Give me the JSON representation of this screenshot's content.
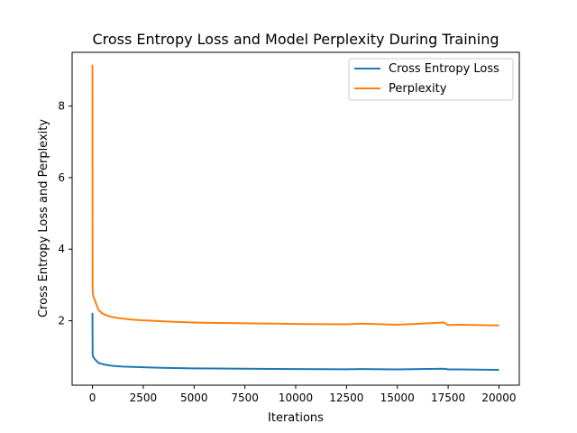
{
  "chart_data": {
    "type": "line",
    "title": "Cross Entropy Loss and Model Perplexity During Training",
    "xlabel": "Iterations",
    "ylabel": "Cross Entropy Loss and Perplexity",
    "xlim": [
      -1000,
      21000
    ],
    "ylim": [
      0.2,
      9.5
    ],
    "xticks": [
      0,
      2500,
      5000,
      7500,
      10000,
      12500,
      15000,
      17500,
      20000
    ],
    "xtick_labels": [
      "0",
      "2500",
      "5000",
      "7500",
      "10000",
      "12500",
      "15000",
      "17500",
      "20000"
    ],
    "yticks": [
      2,
      4,
      6,
      8
    ],
    "ytick_labels": [
      "2",
      "4",
      "6",
      "8"
    ],
    "grid": false,
    "legend_position": "top-right",
    "series": [
      {
        "name": "Cross Entropy Loss",
        "color": "#1f77b4",
        "x": [
          0,
          10,
          30,
          60,
          100,
          200,
          300,
          500,
          750,
          1000,
          1500,
          2000,
          2500,
          3000,
          4000,
          5000,
          6000,
          7500,
          9000,
          10000,
          12500,
          13200,
          15000,
          17300,
          17500,
          18000,
          20000
        ],
        "y": [
          2.22,
          1.05,
          1.0,
          0.97,
          0.94,
          0.88,
          0.82,
          0.79,
          0.76,
          0.74,
          0.72,
          0.71,
          0.7,
          0.69,
          0.68,
          0.67,
          0.665,
          0.66,
          0.655,
          0.65,
          0.645,
          0.65,
          0.64,
          0.66,
          0.64,
          0.64,
          0.63
        ]
      },
      {
        "name": "Perplexity",
        "color": "#ff7f0e",
        "x": [
          0,
          10,
          30,
          60,
          100,
          200,
          300,
          500,
          750,
          1000,
          1500,
          2000,
          2500,
          3000,
          4000,
          5000,
          6000,
          7500,
          9000,
          10000,
          12500,
          13200,
          15000,
          17300,
          17500,
          18000,
          20000
        ],
        "y": [
          9.15,
          2.82,
          2.72,
          2.66,
          2.6,
          2.45,
          2.3,
          2.2,
          2.14,
          2.1,
          2.06,
          2.03,
          2.01,
          2.0,
          1.97,
          1.95,
          1.94,
          1.93,
          1.92,
          1.91,
          1.9,
          1.92,
          1.89,
          1.95,
          1.88,
          1.89,
          1.87
        ]
      }
    ]
  }
}
